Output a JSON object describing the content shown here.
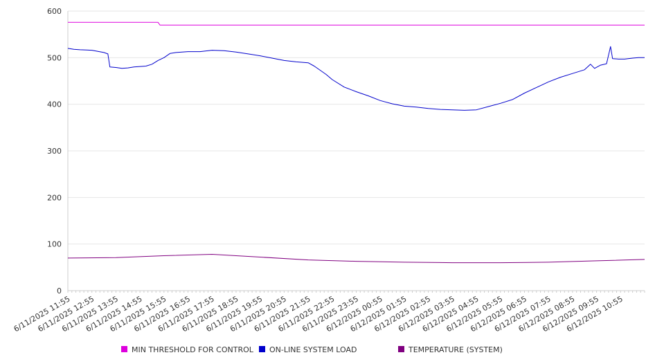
{
  "chart_data": {
    "type": "line",
    "title": "",
    "xlabel": "",
    "ylabel": "",
    "ylim": [
      0,
      600
    ],
    "yticks": [
      0,
      100,
      200,
      300,
      400,
      500,
      600
    ],
    "grid": "horizontal",
    "legend_position": "bottom",
    "x_range": [
      "6/11/2025 11:55",
      "6/12/2025 11:55"
    ],
    "x_tick_labels": [
      "6/11/2025 11:55",
      "6/11/2025 12:55",
      "6/11/2025 13:55",
      "6/11/2025 14:55",
      "6/11/2025 15:55",
      "6/11/2025 16:55",
      "6/11/2025 17:55",
      "6/11/2025 18:55",
      "6/11/2025 19:55",
      "6/11/2025 20:55",
      "6/11/2025 21:55",
      "6/11/2025 22:55",
      "6/11/2025 23:55",
      "6/12/2025 00:55",
      "6/12/2025 01:55",
      "6/12/2025 02:55",
      "6/12/2025 03:55",
      "6/12/2025 04:55",
      "6/12/2025 05:55",
      "6/12/2025 06:55",
      "6/12/2025 07:55",
      "6/12/2025 08:55",
      "6/12/2025 09:55",
      "6/12/2025 10:55"
    ],
    "series": [
      {
        "name": "MIN THRESHOLD FOR CONTROL",
        "color": "#dd00dd",
        "points": [
          [
            "6/11/2025 11:55",
            576
          ],
          [
            "6/11/2025 15:40",
            576
          ],
          [
            "6/11/2025 15:45",
            570
          ],
          [
            "6/12/2025 11:55",
            570
          ]
        ]
      },
      {
        "name": "ON-LINE SYSTEM LOAD",
        "color": "#0000cc",
        "points": [
          [
            "6/11/2025 11:55",
            520
          ],
          [
            "6/11/2025 12:10",
            518
          ],
          [
            "6/11/2025 12:25",
            517
          ],
          [
            "6/11/2025 12:55",
            516
          ],
          [
            "6/11/2025 13:25",
            511
          ],
          [
            "6/11/2025 13:35",
            508
          ],
          [
            "6/11/2025 13:40",
            480
          ],
          [
            "6/11/2025 13:55",
            479
          ],
          [
            "6/11/2025 14:10",
            477
          ],
          [
            "6/11/2025 14:25",
            478
          ],
          [
            "6/11/2025 14:40",
            480
          ],
          [
            "6/11/2025 14:55",
            481
          ],
          [
            "6/11/2025 15:10",
            482
          ],
          [
            "6/11/2025 15:25",
            486
          ],
          [
            "6/11/2025 15:40",
            494
          ],
          [
            "6/11/2025 15:55",
            500
          ],
          [
            "6/11/2025 16:10",
            509
          ],
          [
            "6/11/2025 16:25",
            511
          ],
          [
            "6/11/2025 16:55",
            513
          ],
          [
            "6/11/2025 17:25",
            513
          ],
          [
            "6/11/2025 17:55",
            516
          ],
          [
            "6/11/2025 18:25",
            515
          ],
          [
            "6/11/2025 18:55",
            512
          ],
          [
            "6/11/2025 19:25",
            508
          ],
          [
            "6/11/2025 19:55",
            504
          ],
          [
            "6/11/2025 20:25",
            499
          ],
          [
            "6/11/2025 20:55",
            494
          ],
          [
            "6/11/2025 21:25",
            491
          ],
          [
            "6/11/2025 21:55",
            489
          ],
          [
            "6/11/2025 22:10",
            482
          ],
          [
            "6/11/2025 22:25",
            473
          ],
          [
            "6/11/2025 22:40",
            464
          ],
          [
            "6/11/2025 22:55",
            453
          ],
          [
            "6/11/2025 23:25",
            437
          ],
          [
            "6/11/2025 23:55",
            427
          ],
          [
            "6/12/2025 00:25",
            418
          ],
          [
            "6/12/2025 00:55",
            408
          ],
          [
            "6/12/2025 01:25",
            401
          ],
          [
            "6/12/2025 01:55",
            396
          ],
          [
            "6/12/2025 02:25",
            394
          ],
          [
            "6/12/2025 02:55",
            391
          ],
          [
            "6/12/2025 03:25",
            389
          ],
          [
            "6/12/2025 03:55",
            388
          ],
          [
            "6/12/2025 04:25",
            387
          ],
          [
            "6/12/2025 04:55",
            388
          ],
          [
            "6/12/2025 05:25",
            395
          ],
          [
            "6/12/2025 05:55",
            402
          ],
          [
            "6/12/2025 06:25",
            410
          ],
          [
            "6/12/2025 06:55",
            424
          ],
          [
            "6/12/2025 07:25",
            436
          ],
          [
            "6/12/2025 07:55",
            448
          ],
          [
            "6/12/2025 08:25",
            458
          ],
          [
            "6/12/2025 08:55",
            466
          ],
          [
            "6/12/2025 09:25",
            474
          ],
          [
            "6/12/2025 09:40",
            486
          ],
          [
            "6/12/2025 09:50",
            477
          ],
          [
            "6/12/2025 10:05",
            484
          ],
          [
            "6/12/2025 10:20",
            487
          ],
          [
            "6/12/2025 10:30",
            524
          ],
          [
            "6/12/2025 10:35",
            498
          ],
          [
            "6/12/2025 10:50",
            497
          ],
          [
            "6/12/2025 11:05",
            497
          ],
          [
            "6/12/2025 11:25",
            499
          ],
          [
            "6/12/2025 11:40",
            500
          ],
          [
            "6/12/2025 11:55",
            500
          ]
        ]
      },
      {
        "name": "TEMPERATURE (SYSTEM)",
        "color": "#800080",
        "points": [
          [
            "6/11/2025 11:55",
            70
          ],
          [
            "6/11/2025 13:55",
            71
          ],
          [
            "6/11/2025 15:55",
            75
          ],
          [
            "6/11/2025 17:55",
            78
          ],
          [
            "6/11/2025 18:55",
            75
          ],
          [
            "6/11/2025 19:55",
            72
          ],
          [
            "6/11/2025 21:55",
            66
          ],
          [
            "6/11/2025 23:55",
            63
          ],
          [
            "6/12/2025 01:55",
            61
          ],
          [
            "6/12/2025 03:55",
            60
          ],
          [
            "6/12/2025 05:55",
            60
          ],
          [
            "6/12/2025 07:55",
            61
          ],
          [
            "6/12/2025 09:55",
            64
          ],
          [
            "6/12/2025 11:55",
            67
          ]
        ]
      }
    ]
  }
}
